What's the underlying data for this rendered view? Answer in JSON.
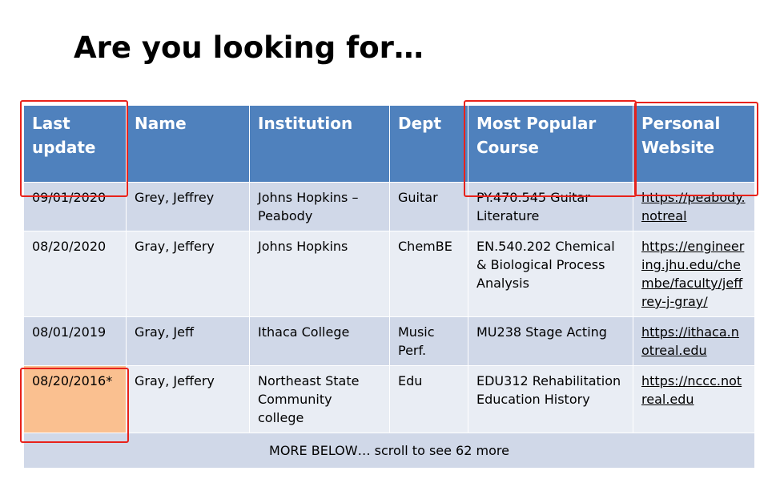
{
  "title": "Are you looking for…",
  "table": {
    "headers": [
      "Last update",
      "Name",
      "Institution",
      "Dept",
      "Most Popular Course",
      "Personal Website"
    ],
    "rows": [
      {
        "last_update": "09/01/2020",
        "name": "Grey, Jeffrey",
        "institution": "Johns Hopkins – Peabody",
        "dept": "Guitar",
        "course": "PY.470.545 Guitar Literature",
        "website": "https://peabody.notreal"
      },
      {
        "last_update": "08/20/2020",
        "name": "Gray, Jeffery",
        "institution": "Johns Hopkins",
        "dept": "ChemBE",
        "course": "EN.540.202 Chemical & Biological Process Analysis",
        "website": "https://engineering.jhu.edu/chembe/faculty/jeffrey-j-gray/"
      },
      {
        "last_update": "08/01/2019",
        "name": "Gray, Jeff",
        "institution": "Ithaca College",
        "dept": "Music Perf.",
        "course": "MU238 Stage Acting",
        "website": "https://ithaca.notreal.edu"
      },
      {
        "last_update": "08/20/2016*",
        "name": "Gray, Jeffery",
        "institution": "Northeast State Community college",
        "dept": "Edu",
        "course": "EDU312 Rehabilitation Education History",
        "website": "https://nccc.notreal.edu"
      }
    ],
    "footer": "MORE BELOW… scroll to see 62 more"
  },
  "colors": {
    "header_bg": "#4f81bd",
    "row_dark": "#d0d8e8",
    "row_light": "#e9edf4",
    "highlight_cell": "#fac090",
    "annotation_box": "#e8221b"
  }
}
